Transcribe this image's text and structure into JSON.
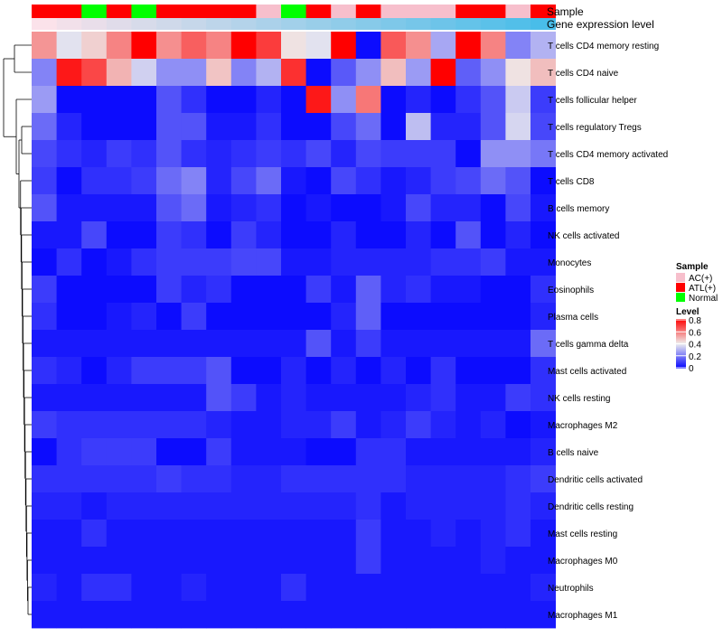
{
  "chart_data": {
    "type": "heatmap",
    "annotation_labels": {
      "sample": "Sample",
      "gene_expression": "Gene expression level"
    },
    "samples": [
      "ATL(+)",
      "ATL(+)",
      "Normal",
      "ATL(+)",
      "Normal",
      "ATL(+)",
      "ATL(+)",
      "ATL(+)",
      "ATL(+)",
      "AC(+)",
      "Normal",
      "ATL(+)",
      "AC(+)",
      "ATL(+)",
      "AC(+)",
      "AC(+)",
      "AC(+)",
      "ATL(+)",
      "ATL(+)",
      "AC(+)",
      "ATL(+)"
    ],
    "gene_expression_level": [
      0.0,
      0.05,
      0.1,
      0.15,
      0.2,
      0.25,
      0.3,
      0.35,
      0.4,
      0.45,
      0.5,
      0.55,
      0.6,
      0.65,
      0.7,
      0.75,
      0.8,
      0.85,
      0.9,
      0.95,
      1.0
    ],
    "rows": [
      "T cells CD4 memory resting",
      "T cells CD4 naive",
      "T cells follicular helper",
      "T cells regulatory  Tregs",
      "T cells CD4 memory activated",
      "T cells CD8",
      "B cells memory",
      "NK cells activated",
      "Monocytes",
      "Eosinophils",
      "Plasma cells",
      "T cells gamma delta",
      "Mast cells activated",
      "NK cells resting",
      "Macrophages M2",
      "B cells naive",
      "Dendritic cells activated",
      "Dendritic cells resting",
      "Mast cells resting",
      "Macrophages M0",
      "Neutrophils",
      "Macrophages M1"
    ],
    "values": [
      [
        0.55,
        0.38,
        0.45,
        0.58,
        0.8,
        0.56,
        0.64,
        0.58,
        0.8,
        0.7,
        0.42,
        0.38,
        0.8,
        0.02,
        0.65,
        0.56,
        0.28,
        0.8,
        0.58,
        0.22,
        0.3
      ],
      [
        0.22,
        0.76,
        0.68,
        0.5,
        0.35,
        0.24,
        0.24,
        0.47,
        0.22,
        0.3,
        0.72,
        0.02,
        0.15,
        0.24,
        0.48,
        0.26,
        0.8,
        0.16,
        0.24,
        0.42,
        0.48
      ],
      [
        0.26,
        0.02,
        0.02,
        0.02,
        0.02,
        0.14,
        0.08,
        0.02,
        0.02,
        0.06,
        0.02,
        0.76,
        0.24,
        0.6,
        0.02,
        0.06,
        0.02,
        0.08,
        0.14,
        0.34,
        0.1
      ],
      [
        0.18,
        0.06,
        0.02,
        0.02,
        0.02,
        0.14,
        0.14,
        0.04,
        0.04,
        0.08,
        0.02,
        0.02,
        0.12,
        0.18,
        0.02,
        0.32,
        0.06,
        0.06,
        0.14,
        0.36,
        0.12
      ],
      [
        0.12,
        0.08,
        0.06,
        0.1,
        0.08,
        0.14,
        0.08,
        0.06,
        0.08,
        0.1,
        0.08,
        0.12,
        0.06,
        0.12,
        0.1,
        0.1,
        0.1,
        0.02,
        0.24,
        0.24,
        0.2
      ],
      [
        0.1,
        0.02,
        0.08,
        0.08,
        0.1,
        0.18,
        0.22,
        0.06,
        0.12,
        0.18,
        0.04,
        0.02,
        0.12,
        0.08,
        0.04,
        0.06,
        0.1,
        0.12,
        0.18,
        0.14,
        0.02
      ],
      [
        0.14,
        0.04,
        0.04,
        0.04,
        0.04,
        0.14,
        0.18,
        0.04,
        0.06,
        0.08,
        0.02,
        0.04,
        0.02,
        0.02,
        0.04,
        0.12,
        0.06,
        0.06,
        0.02,
        0.12,
        0.04
      ],
      [
        0.04,
        0.04,
        0.12,
        0.02,
        0.02,
        0.1,
        0.08,
        0.02,
        0.1,
        0.06,
        0.02,
        0.02,
        0.06,
        0.02,
        0.02,
        0.06,
        0.02,
        0.14,
        0.02,
        0.06,
        0.02
      ],
      [
        0.02,
        0.08,
        0.02,
        0.04,
        0.08,
        0.1,
        0.1,
        0.1,
        0.12,
        0.12,
        0.04,
        0.04,
        0.06,
        0.06,
        0.06,
        0.06,
        0.08,
        0.08,
        0.1,
        0.04,
        0.04
      ],
      [
        0.1,
        0.02,
        0.02,
        0.02,
        0.02,
        0.1,
        0.06,
        0.08,
        0.02,
        0.02,
        0.02,
        0.1,
        0.04,
        0.16,
        0.06,
        0.08,
        0.04,
        0.04,
        0.02,
        0.02,
        0.08
      ],
      [
        0.08,
        0.02,
        0.02,
        0.04,
        0.06,
        0.02,
        0.1,
        0.02,
        0.02,
        0.02,
        0.02,
        0.02,
        0.06,
        0.16,
        0.02,
        0.02,
        0.02,
        0.02,
        0.02,
        0.02,
        0.06
      ],
      [
        0.04,
        0.04,
        0.04,
        0.04,
        0.04,
        0.04,
        0.04,
        0.04,
        0.04,
        0.04,
        0.04,
        0.14,
        0.04,
        0.1,
        0.04,
        0.04,
        0.04,
        0.04,
        0.04,
        0.04,
        0.18
      ],
      [
        0.08,
        0.06,
        0.02,
        0.06,
        0.1,
        0.1,
        0.1,
        0.14,
        0.02,
        0.02,
        0.06,
        0.02,
        0.06,
        0.02,
        0.06,
        0.02,
        0.08,
        0.02,
        0.02,
        0.02,
        0.08
      ],
      [
        0.04,
        0.04,
        0.04,
        0.04,
        0.04,
        0.04,
        0.04,
        0.14,
        0.1,
        0.04,
        0.06,
        0.04,
        0.04,
        0.04,
        0.04,
        0.06,
        0.08,
        0.04,
        0.04,
        0.1,
        0.08
      ],
      [
        0.1,
        0.08,
        0.08,
        0.08,
        0.08,
        0.08,
        0.08,
        0.06,
        0.04,
        0.04,
        0.06,
        0.06,
        0.1,
        0.04,
        0.06,
        0.1,
        0.06,
        0.04,
        0.06,
        0.02,
        0.04
      ],
      [
        0.02,
        0.08,
        0.1,
        0.1,
        0.1,
        0.02,
        0.02,
        0.1,
        0.04,
        0.04,
        0.04,
        0.02,
        0.02,
        0.08,
        0.08,
        0.04,
        0.04,
        0.04,
        0.04,
        0.04,
        0.06
      ],
      [
        0.08,
        0.08,
        0.08,
        0.08,
        0.08,
        0.1,
        0.08,
        0.08,
        0.06,
        0.06,
        0.08,
        0.08,
        0.08,
        0.08,
        0.08,
        0.06,
        0.06,
        0.06,
        0.06,
        0.08,
        0.1
      ],
      [
        0.06,
        0.06,
        0.04,
        0.06,
        0.06,
        0.06,
        0.06,
        0.06,
        0.06,
        0.06,
        0.06,
        0.06,
        0.06,
        0.08,
        0.04,
        0.06,
        0.06,
        0.06,
        0.06,
        0.08,
        0.06
      ],
      [
        0.04,
        0.04,
        0.08,
        0.04,
        0.04,
        0.04,
        0.04,
        0.04,
        0.04,
        0.04,
        0.04,
        0.04,
        0.04,
        0.1,
        0.04,
        0.04,
        0.06,
        0.04,
        0.06,
        0.08,
        0.04
      ],
      [
        0.04,
        0.04,
        0.04,
        0.04,
        0.04,
        0.04,
        0.04,
        0.04,
        0.04,
        0.04,
        0.04,
        0.04,
        0.04,
        0.1,
        0.04,
        0.04,
        0.04,
        0.04,
        0.06,
        0.04,
        0.04
      ],
      [
        0.06,
        0.04,
        0.08,
        0.08,
        0.04,
        0.04,
        0.06,
        0.04,
        0.04,
        0.04,
        0.08,
        0.04,
        0.04,
        0.04,
        0.04,
        0.04,
        0.04,
        0.04,
        0.04,
        0.04,
        0.06
      ],
      [
        0.04,
        0.04,
        0.04,
        0.04,
        0.04,
        0.04,
        0.04,
        0.04,
        0.04,
        0.04,
        0.04,
        0.04,
        0.04,
        0.04,
        0.04,
        0.04,
        0.04,
        0.04,
        0.04,
        0.04,
        0.04
      ]
    ],
    "legend_sample": {
      "title": "Sample",
      "entries": [
        {
          "label": "AC(+)",
          "color": "#f7bfcc"
        },
        {
          "label": "ATL(+)",
          "color": "#ff0000"
        },
        {
          "label": "Normal",
          "color": "#00ff00"
        }
      ]
    },
    "legend_level": {
      "title": "Level",
      "ticks": [
        "0.8",
        "0.6",
        "0.4",
        "0.2",
        "0"
      ],
      "tick_values": [
        0.8,
        0.6,
        0.4,
        0.2,
        0.0
      ],
      "range": [
        0,
        0.8
      ]
    },
    "colors": {
      "low": "#0000ff",
      "mid": "#eeeeee",
      "high": "#ff0000",
      "expr_low": "#fbe2ea",
      "expr_high": "#49bde9"
    }
  }
}
